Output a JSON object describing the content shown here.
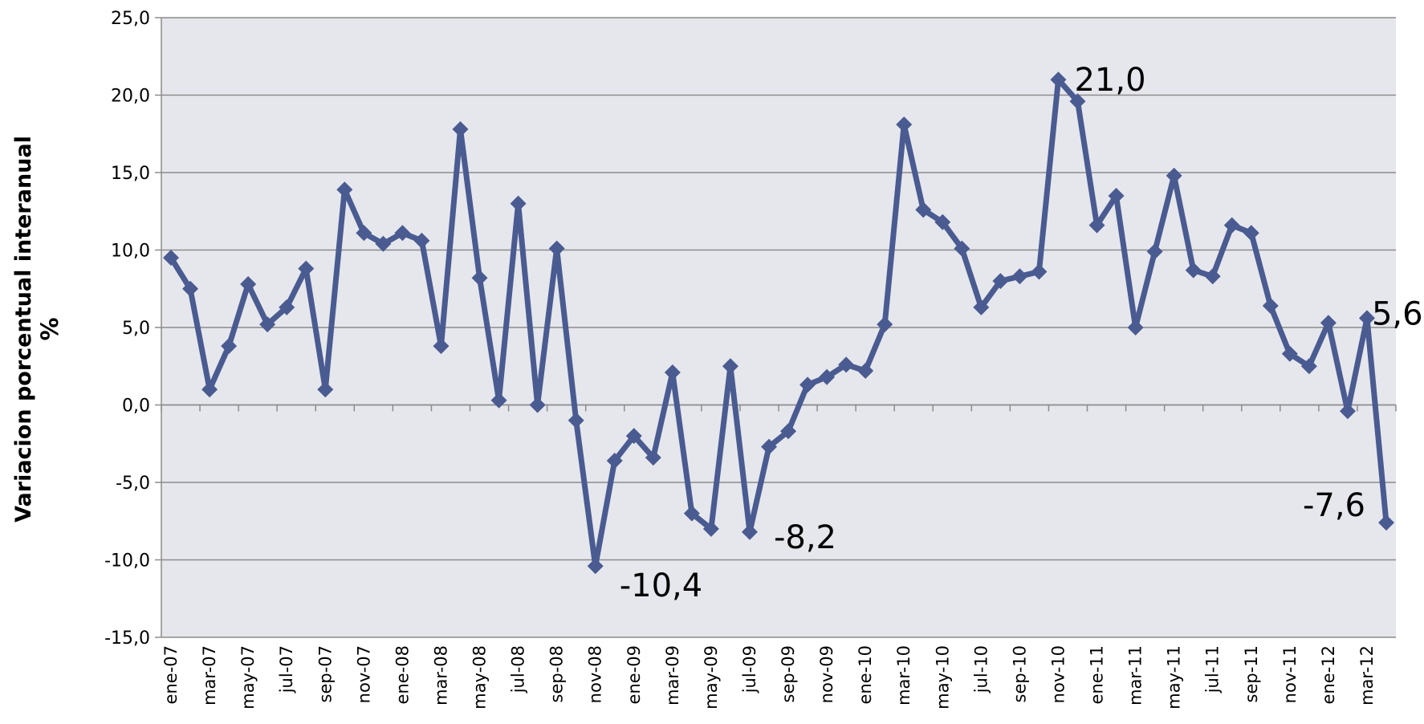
{
  "chart_data": {
    "type": "line",
    "y_label": "Variacion porcentual interanual",
    "y_unit": "%",
    "categories": [
      "ene-07",
      null,
      "mar-07",
      null,
      "may-07",
      null,
      "jul-07",
      null,
      "sep-07",
      null,
      "nov-07",
      null,
      "ene-08",
      null,
      "mar-08",
      null,
      "may-08",
      null,
      "jul-08",
      null,
      "sep-08",
      null,
      "nov-08",
      null,
      "ene-09",
      null,
      "mar-09",
      null,
      "may-09",
      null,
      "jul-09",
      null,
      "sep-09",
      null,
      "nov-09",
      null,
      "ene-10",
      null,
      "mar-10",
      null,
      "may-10",
      null,
      "jul-10",
      null,
      "sep-10",
      null,
      "nov-10",
      null,
      "ene-11",
      null,
      "mar-11",
      null,
      "may-11",
      null,
      "jul-11",
      null,
      "sep-11",
      null,
      "nov-11",
      null,
      "ene-12",
      null,
      "mar-12",
      null
    ],
    "series": [
      {
        "name": "Variacion porcentual interanual",
        "color": "#4a5b91",
        "values": [
          9.5,
          7.5,
          1.0,
          3.8,
          7.8,
          5.2,
          6.3,
          8.8,
          1.0,
          13.9,
          11.1,
          10.4,
          11.1,
          10.6,
          3.8,
          17.8,
          8.2,
          0.3,
          13.0,
          0.0,
          10.1,
          -1.0,
          -10.4,
          -3.6,
          -2.0,
          -3.4,
          2.1,
          -7.0,
          -8.0,
          2.5,
          -8.2,
          -2.7,
          -1.7,
          1.3,
          1.8,
          2.6,
          2.2,
          5.2,
          18.1,
          12.6,
          11.8,
          10.1,
          6.3,
          8.0,
          8.3,
          8.6,
          21.0,
          19.6,
          11.6,
          13.5,
          5.0,
          9.9,
          14.8,
          8.7,
          8.3,
          11.6,
          11.1,
          6.4,
          3.3,
          2.5,
          5.3,
          -0.4,
          5.6,
          -7.6
        ],
        "value_labels": [
          null,
          null,
          null,
          null,
          null,
          null,
          null,
          null,
          null,
          null,
          null,
          null,
          null,
          null,
          null,
          null,
          null,
          null,
          null,
          null,
          null,
          null,
          "-10,4",
          null,
          null,
          null,
          null,
          null,
          null,
          null,
          "-8,2",
          null,
          null,
          null,
          null,
          null,
          null,
          null,
          null,
          null,
          null,
          null,
          null,
          null,
          null,
          null,
          "21,0",
          null,
          null,
          null,
          null,
          null,
          null,
          null,
          null,
          null,
          null,
          null,
          null,
          null,
          null,
          null,
          "5,6",
          "-7,6"
        ]
      }
    ],
    "ylim": [
      -15,
      25
    ],
    "yticks": [
      {
        "value": -15,
        "label": "-15,0"
      },
      {
        "value": -10,
        "label": "-10,0"
      },
      {
        "value": -5,
        "label": "-5,0"
      },
      {
        "value": 0,
        "label": "0,0"
      },
      {
        "value": 5,
        "label": "5,0"
      },
      {
        "value": 10,
        "label": "10,0"
      },
      {
        "value": 15,
        "label": "15,0"
      },
      {
        "value": 20,
        "label": "20,0"
      },
      {
        "value": 25,
        "label": "25,0"
      }
    ],
    "grid": true,
    "background": "#e6e7ec"
  }
}
